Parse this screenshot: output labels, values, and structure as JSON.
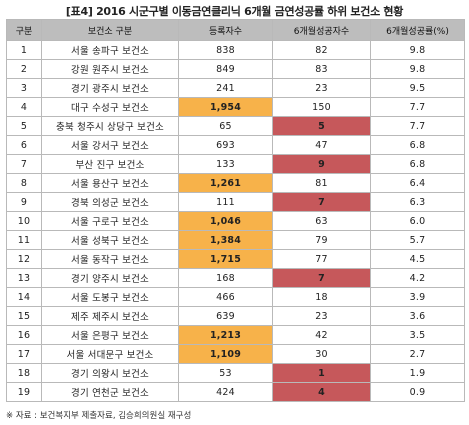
{
  "title": "[표4] 2016 시군구별 이동금연클리닉 6개월 금연성공률 하위 보건소 현황",
  "columns": [
    "구분",
    "보건소 구분",
    "등록자수",
    "6개월성공자수",
    "6개월성공률(%)"
  ],
  "rows": [
    {
      "no": "1",
      "name": "서울 송파구 보건소",
      "registered": "838",
      "success": "82",
      "rate": "9.8",
      "reg_hl": "",
      "suc_hl": ""
    },
    {
      "no": "2",
      "name": "강원 원주시 보건소",
      "registered": "849",
      "success": "83",
      "rate": "9.8",
      "reg_hl": "",
      "suc_hl": ""
    },
    {
      "no": "3",
      "name": "경기 광주시 보건소",
      "registered": "241",
      "success": "23",
      "rate": "9.5",
      "reg_hl": "",
      "suc_hl": ""
    },
    {
      "no": "4",
      "name": "대구 수성구 보건소",
      "registered": "1,954",
      "success": "150",
      "rate": "7.7",
      "reg_hl": "orange",
      "suc_hl": ""
    },
    {
      "no": "5",
      "name": "충북 청주시 상당구 보건소",
      "registered": "65",
      "success": "5",
      "rate": "7.7",
      "reg_hl": "",
      "suc_hl": "red"
    },
    {
      "no": "6",
      "name": "서울 강서구 보건소",
      "registered": "693",
      "success": "47",
      "rate": "6.8",
      "reg_hl": "",
      "suc_hl": ""
    },
    {
      "no": "7",
      "name": "부산 진구 보건소",
      "registered": "133",
      "success": "9",
      "rate": "6.8",
      "reg_hl": "",
      "suc_hl": "red"
    },
    {
      "no": "8",
      "name": "서울 용산구 보건소",
      "registered": "1,261",
      "success": "81",
      "rate": "6.4",
      "reg_hl": "orange",
      "suc_hl": ""
    },
    {
      "no": "9",
      "name": "경북 의성군 보건소",
      "registered": "111",
      "success": "7",
      "rate": "6.3",
      "reg_hl": "",
      "suc_hl": "red"
    },
    {
      "no": "10",
      "name": "서울 구로구 보건소",
      "registered": "1,046",
      "success": "63",
      "rate": "6.0",
      "reg_hl": "orange",
      "suc_hl": ""
    },
    {
      "no": "11",
      "name": "서울 성북구 보건소",
      "registered": "1,384",
      "success": "79",
      "rate": "5.7",
      "reg_hl": "orange",
      "suc_hl": ""
    },
    {
      "no": "12",
      "name": "서울 동작구 보건소",
      "registered": "1,715",
      "success": "77",
      "rate": "4.5",
      "reg_hl": "orange",
      "suc_hl": ""
    },
    {
      "no": "13",
      "name": "경기 양주시 보건소",
      "registered": "168",
      "success": "7",
      "rate": "4.2",
      "reg_hl": "",
      "suc_hl": "red"
    },
    {
      "no": "14",
      "name": "서울 도봉구 보건소",
      "registered": "466",
      "success": "18",
      "rate": "3.9",
      "reg_hl": "",
      "suc_hl": ""
    },
    {
      "no": "15",
      "name": "제주 제주시 보건소",
      "registered": "639",
      "success": "23",
      "rate": "3.6",
      "reg_hl": "",
      "suc_hl": ""
    },
    {
      "no": "16",
      "name": "서울 은평구 보건소",
      "registered": "1,213",
      "success": "42",
      "rate": "3.5",
      "reg_hl": "orange",
      "suc_hl": ""
    },
    {
      "no": "17",
      "name": "서울 서대문구 보건소",
      "registered": "1,109",
      "success": "30",
      "rate": "2.7",
      "reg_hl": "orange",
      "suc_hl": ""
    },
    {
      "no": "18",
      "name": "경기 의왕시 보건소",
      "registered": "53",
      "success": "1",
      "rate": "1.9",
      "reg_hl": "",
      "suc_hl": "red"
    },
    {
      "no": "19",
      "name": "경기 연천군 보건소",
      "registered": "424",
      "success": "4",
      "rate": "0.9",
      "reg_hl": "",
      "suc_hl": "red"
    }
  ],
  "highlight_colors": {
    "orange": "#f7b24a",
    "red": "#c6585b",
    "header": "#bdbdbd"
  },
  "footnote": "※ 자료 : 보건복지부 제출자료, 김승희의원실 재구성"
}
